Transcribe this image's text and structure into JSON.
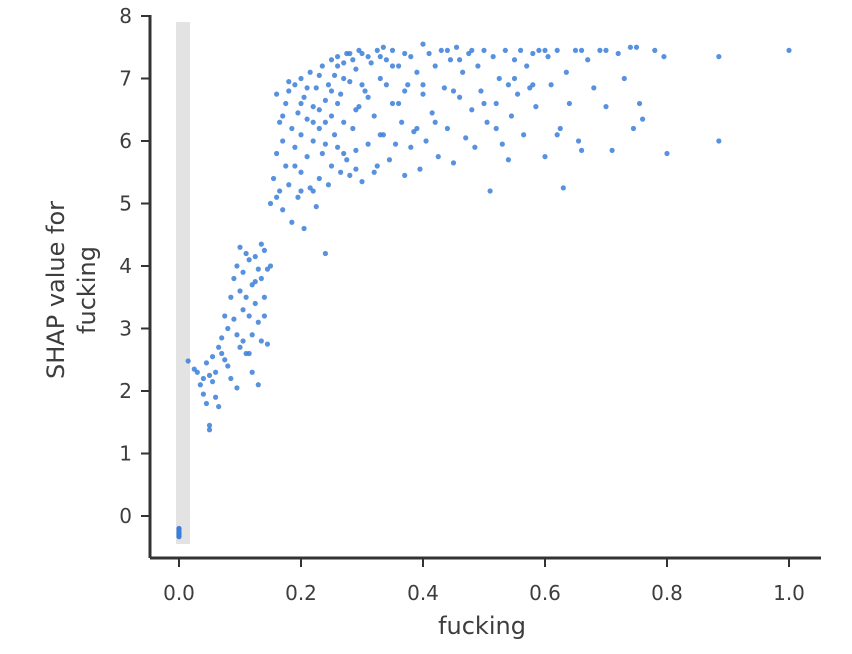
{
  "chart_data": {
    "type": "scatter",
    "title": "",
    "xlabel": "fucking",
    "ylabel_lines": [
      "SHAP value for",
      "fucking"
    ],
    "xlim": [
      -0.05,
      1.05
    ],
    "ylim": [
      -0.7,
      8.0
    ],
    "x_ticks": [
      0.0,
      0.2,
      0.4,
      0.6,
      0.8,
      1.0
    ],
    "x_tick_labels": [
      "0.0",
      "0.2",
      "0.4",
      "0.6",
      "0.8",
      "1.0"
    ],
    "y_ticks": [
      0,
      1,
      2,
      3,
      4,
      5,
      6,
      7,
      8
    ],
    "y_tick_labels": [
      "0",
      "1",
      "2",
      "3",
      "4",
      "5",
      "6",
      "7",
      "8"
    ],
    "grid": false,
    "legend": "none",
    "point_color": "#3b7fd9",
    "zero_band_color": "#e3e3e3",
    "axis_color": "#333333",
    "series": [
      {
        "points": [
          [
            0.0,
            -0.22
          ],
          [
            0.0,
            -0.26
          ],
          [
            0.0,
            -0.3
          ],
          [
            0.0,
            -0.33
          ],
          [
            0.0,
            -0.2
          ],
          [
            0.0,
            -0.28
          ],
          [
            0.015,
            2.48
          ],
          [
            0.025,
            2.35
          ],
          [
            0.03,
            2.3
          ],
          [
            0.035,
            2.1
          ],
          [
            0.04,
            2.2
          ],
          [
            0.04,
            1.95
          ],
          [
            0.045,
            2.45
          ],
          [
            0.045,
            1.8
          ],
          [
            0.05,
            1.45
          ],
          [
            0.05,
            1.38
          ],
          [
            0.05,
            2.25
          ],
          [
            0.055,
            2.15
          ],
          [
            0.055,
            2.55
          ],
          [
            0.06,
            2.3
          ],
          [
            0.06,
            1.9
          ],
          [
            0.065,
            1.75
          ],
          [
            0.065,
            2.7
          ],
          [
            0.07,
            2.6
          ],
          [
            0.07,
            2.85
          ],
          [
            0.075,
            3.2
          ],
          [
            0.08,
            3.0
          ],
          [
            0.08,
            2.4
          ],
          [
            0.085,
            3.5
          ],
          [
            0.085,
            2.2
          ],
          [
            0.09,
            3.8
          ],
          [
            0.09,
            3.15
          ],
          [
            0.095,
            4.0
          ],
          [
            0.095,
            2.9
          ],
          [
            0.1,
            4.3
          ],
          [
            0.1,
            3.6
          ],
          [
            0.1,
            2.7
          ],
          [
            0.105,
            3.9
          ],
          [
            0.105,
            3.3
          ],
          [
            0.11,
            4.2
          ],
          [
            0.11,
            3.5
          ],
          [
            0.11,
            2.6
          ],
          [
            0.115,
            4.1
          ],
          [
            0.115,
            3.2
          ],
          [
            0.12,
            3.7
          ],
          [
            0.12,
            2.9
          ],
          [
            0.12,
            2.3
          ],
          [
            0.125,
            4.15
          ],
          [
            0.125,
            3.4
          ],
          [
            0.13,
            3.95
          ],
          [
            0.13,
            3.1
          ],
          [
            0.13,
            2.1
          ],
          [
            0.135,
            3.8
          ],
          [
            0.135,
            2.8
          ],
          [
            0.14,
            4.25
          ],
          [
            0.14,
            3.5
          ],
          [
            0.145,
            2.75
          ],
          [
            0.15,
            4.0
          ],
          [
            0.075,
            2.5
          ],
          [
            0.095,
            2.05
          ],
          [
            0.115,
            2.6
          ],
          [
            0.14,
            3.2
          ],
          [
            0.145,
            3.95
          ],
          [
            0.105,
            2.8
          ],
          [
            0.125,
            3.75
          ],
          [
            0.135,
            4.35
          ],
          [
            0.15,
            5.0
          ],
          [
            0.155,
            5.4
          ],
          [
            0.16,
            5.8
          ],
          [
            0.16,
            6.75
          ],
          [
            0.165,
            6.3
          ],
          [
            0.165,
            5.2
          ],
          [
            0.17,
            6.0
          ],
          [
            0.17,
            4.9
          ],
          [
            0.175,
            6.6
          ],
          [
            0.175,
            5.6
          ],
          [
            0.18,
            6.8
          ],
          [
            0.18,
            5.3
          ],
          [
            0.185,
            6.2
          ],
          [
            0.185,
            4.7
          ],
          [
            0.19,
            6.9
          ],
          [
            0.19,
            5.9
          ],
          [
            0.195,
            6.45
          ],
          [
            0.195,
            5.1
          ],
          [
            0.2,
            7.0
          ],
          [
            0.2,
            6.1
          ],
          [
            0.2,
            5.5
          ],
          [
            0.205,
            6.7
          ],
          [
            0.205,
            4.6
          ],
          [
            0.21,
            6.35
          ],
          [
            0.21,
            5.75
          ],
          [
            0.215,
            7.1
          ],
          [
            0.215,
            5.25
          ],
          [
            0.22,
            6.55
          ],
          [
            0.22,
            6.0
          ],
          [
            0.225,
            6.85
          ],
          [
            0.225,
            4.95
          ],
          [
            0.23,
            6.2
          ],
          [
            0.23,
            5.4
          ],
          [
            0.235,
            7.2
          ],
          [
            0.235,
            5.8
          ],
          [
            0.24,
            6.65
          ],
          [
            0.24,
            4.2
          ],
          [
            0.245,
            6.9
          ],
          [
            0.245,
            5.3
          ],
          [
            0.25,
            7.3
          ],
          [
            0.25,
            6.4
          ],
          [
            0.25,
            5.6
          ],
          [
            0.255,
            7.05
          ],
          [
            0.255,
            6.1
          ],
          [
            0.26,
            7.35
          ],
          [
            0.26,
            5.9
          ],
          [
            0.265,
            6.75
          ],
          [
            0.265,
            5.5
          ],
          [
            0.27,
            7.25
          ],
          [
            0.27,
            6.3
          ],
          [
            0.275,
            7.4
          ],
          [
            0.275,
            5.7
          ],
          [
            0.28,
            6.95
          ],
          [
            0.28,
            5.45
          ],
          [
            0.285,
            7.3
          ],
          [
            0.285,
            6.2
          ],
          [
            0.29,
            7.15
          ],
          [
            0.29,
            5.85
          ],
          [
            0.295,
            7.45
          ],
          [
            0.295,
            6.55
          ],
          [
            0.3,
            7.4
          ],
          [
            0.3,
            5.35
          ],
          [
            0.305,
            6.8
          ],
          [
            0.31,
            7.35
          ],
          [
            0.31,
            5.95
          ],
          [
            0.315,
            7.25
          ],
          [
            0.32,
            6.4
          ],
          [
            0.325,
            7.45
          ],
          [
            0.325,
            5.6
          ],
          [
            0.33,
            7.0
          ],
          [
            0.335,
            7.5
          ],
          [
            0.335,
            6.1
          ],
          [
            0.34,
            7.3
          ],
          [
            0.345,
            5.7
          ],
          [
            0.35,
            7.45
          ],
          [
            0.35,
            6.6
          ],
          [
            0.355,
            5.95
          ],
          [
            0.36,
            7.2
          ],
          [
            0.365,
            6.3
          ],
          [
            0.37,
            7.4
          ],
          [
            0.37,
            5.45
          ],
          [
            0.375,
            6.9
          ],
          [
            0.38,
            7.35
          ],
          [
            0.385,
            6.15
          ],
          [
            0.39,
            7.1
          ],
          [
            0.395,
            5.55
          ],
          [
            0.4,
            7.55
          ],
          [
            0.4,
            6.75
          ],
          [
            0.405,
            6.0
          ],
          [
            0.41,
            7.4
          ],
          [
            0.415,
            6.45
          ],
          [
            0.42,
            7.2
          ],
          [
            0.425,
            5.75
          ],
          [
            0.43,
            7.45
          ],
          [
            0.435,
            6.85
          ],
          [
            0.44,
            6.2
          ],
          [
            0.445,
            7.3
          ],
          [
            0.45,
            5.65
          ],
          [
            0.455,
            7.5
          ],
          [
            0.46,
            6.7
          ],
          [
            0.465,
            7.1
          ],
          [
            0.47,
            6.05
          ],
          [
            0.475,
            7.4
          ],
          [
            0.48,
            6.5
          ],
          [
            0.485,
            5.9
          ],
          [
            0.49,
            7.2
          ],
          [
            0.495,
            6.8
          ],
          [
            0.5,
            7.45
          ],
          [
            0.505,
            6.3
          ],
          [
            0.51,
            5.2
          ],
          [
            0.515,
            7.35
          ],
          [
            0.52,
            6.6
          ],
          [
            0.525,
            7.0
          ],
          [
            0.53,
            5.95
          ],
          [
            0.535,
            7.45
          ],
          [
            0.54,
            6.9
          ],
          [
            0.545,
            6.4
          ],
          [
            0.55,
            7.3
          ],
          [
            0.555,
            6.75
          ],
          [
            0.56,
            7.45
          ],
          [
            0.565,
            6.1
          ],
          [
            0.57,
            7.2
          ],
          [
            0.575,
            6.85
          ],
          [
            0.58,
            7.4
          ],
          [
            0.585,
            6.55
          ],
          [
            0.59,
            7.45
          ],
          [
            0.6,
            5.75
          ],
          [
            0.605,
            7.35
          ],
          [
            0.61,
            6.9
          ],
          [
            0.62,
            7.45
          ],
          [
            0.625,
            6.2
          ],
          [
            0.63,
            5.25
          ],
          [
            0.635,
            7.1
          ],
          [
            0.64,
            6.6
          ],
          [
            0.65,
            7.45
          ],
          [
            0.655,
            6.0
          ],
          [
            0.66,
            5.85
          ],
          [
            0.67,
            7.3
          ],
          [
            0.68,
            6.85
          ],
          [
            0.69,
            7.45
          ],
          [
            0.7,
            6.55
          ],
          [
            0.71,
            5.85
          ],
          [
            0.72,
            7.4
          ],
          [
            0.73,
            7.0
          ],
          [
            0.745,
            6.2
          ],
          [
            0.75,
            7.5
          ],
          [
            0.755,
            6.6
          ],
          [
            0.76,
            6.35
          ],
          [
            0.78,
            7.45
          ],
          [
            0.795,
            7.35
          ],
          [
            0.8,
            5.8
          ],
          [
            0.885,
            6.0
          ],
          [
            0.885,
            7.35
          ],
          [
            1.0,
            7.45
          ],
          [
            0.16,
            5.1
          ],
          [
            0.17,
            6.4
          ],
          [
            0.18,
            6.95
          ],
          [
            0.19,
            5.6
          ],
          [
            0.21,
            6.85
          ],
          [
            0.22,
            5.2
          ],
          [
            0.23,
            7.05
          ],
          [
            0.24,
            6.3
          ],
          [
            0.26,
            6.6
          ],
          [
            0.27,
            5.8
          ],
          [
            0.28,
            7.4
          ],
          [
            0.29,
            6.5
          ],
          [
            0.31,
            6.7
          ],
          [
            0.32,
            5.5
          ],
          [
            0.33,
            7.35
          ],
          [
            0.34,
            6.9
          ],
          [
            0.36,
            6.6
          ],
          [
            0.38,
            5.9
          ],
          [
            0.42,
            6.3
          ],
          [
            0.44,
            7.45
          ],
          [
            0.46,
            7.3
          ],
          [
            0.48,
            7.45
          ],
          [
            0.52,
            6.2
          ],
          [
            0.54,
            5.7
          ],
          [
            0.58,
            6.9
          ],
          [
            0.6,
            7.45
          ],
          [
            0.62,
            6.1
          ],
          [
            0.66,
            7.45
          ],
          [
            0.7,
            7.45
          ],
          [
            0.74,
            7.5
          ],
          [
            0.2,
            6.6
          ],
          [
            0.2,
            5.2
          ],
          [
            0.23,
            6.5
          ],
          [
            0.25,
            6.8
          ],
          [
            0.26,
            7.2
          ],
          [
            0.3,
            6.9
          ],
          [
            0.35,
            7.2
          ],
          [
            0.4,
            6.9
          ],
          [
            0.45,
            6.8
          ],
          [
            0.5,
            6.6
          ],
          [
            0.55,
            7.0
          ],
          [
            0.39,
            6.2
          ],
          [
            0.37,
            6.8
          ],
          [
            0.33,
            6.1
          ],
          [
            0.29,
            5.55
          ],
          [
            0.27,
            7.0
          ],
          [
            0.24,
            5.95
          ],
          [
            0.22,
            6.3
          ]
        ]
      }
    ]
  }
}
